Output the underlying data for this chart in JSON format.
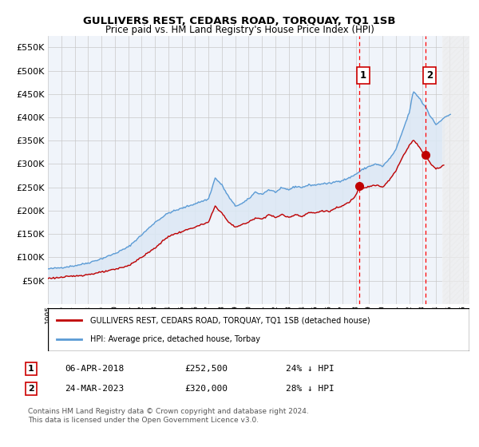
{
  "title": "GULLIVERS REST, CEDARS ROAD, TORQUAY, TQ1 1SB",
  "subtitle": "Price paid vs. HM Land Registry's House Price Index (HPI)",
  "legend_line1": "GULLIVERS REST, CEDARS ROAD, TORQUAY, TQ1 1SB (detached house)",
  "legend_line2": "HPI: Average price, detached house, Torbay",
  "annotation1": {
    "num": "1",
    "date": "06-APR-2018",
    "price": "£252,500",
    "pct": "24% ↓ HPI"
  },
  "annotation2": {
    "num": "2",
    "date": "24-MAR-2023",
    "price": "£320,000",
    "pct": "28% ↓ HPI"
  },
  "footer": "Contains HM Land Registry data © Crown copyright and database right 2024.\nThis data is licensed under the Open Government Licence v3.0.",
  "hpi_color": "#5b9bd5",
  "price_color": "#c00000",
  "dashed_vline_color": "#ff0000",
  "background_color": "#ffffff",
  "grid_color": "#c8c8c8",
  "plot_bg_color": "#f0f4fa",
  "fill_color": "#ddeeff",
  "ylim": [
    0,
    575000
  ],
  "yticks": [
    0,
    50000,
    100000,
    150000,
    200000,
    250000,
    300000,
    350000,
    400000,
    450000,
    500000,
    550000
  ],
  "xlim_start": 1995.0,
  "xlim_end": 2026.5,
  "sale1_year": 2018.27,
  "sale1_y": 252500,
  "sale2_year": 2023.22,
  "sale2_y": 320000,
  "hatch_start": 2024.5
}
